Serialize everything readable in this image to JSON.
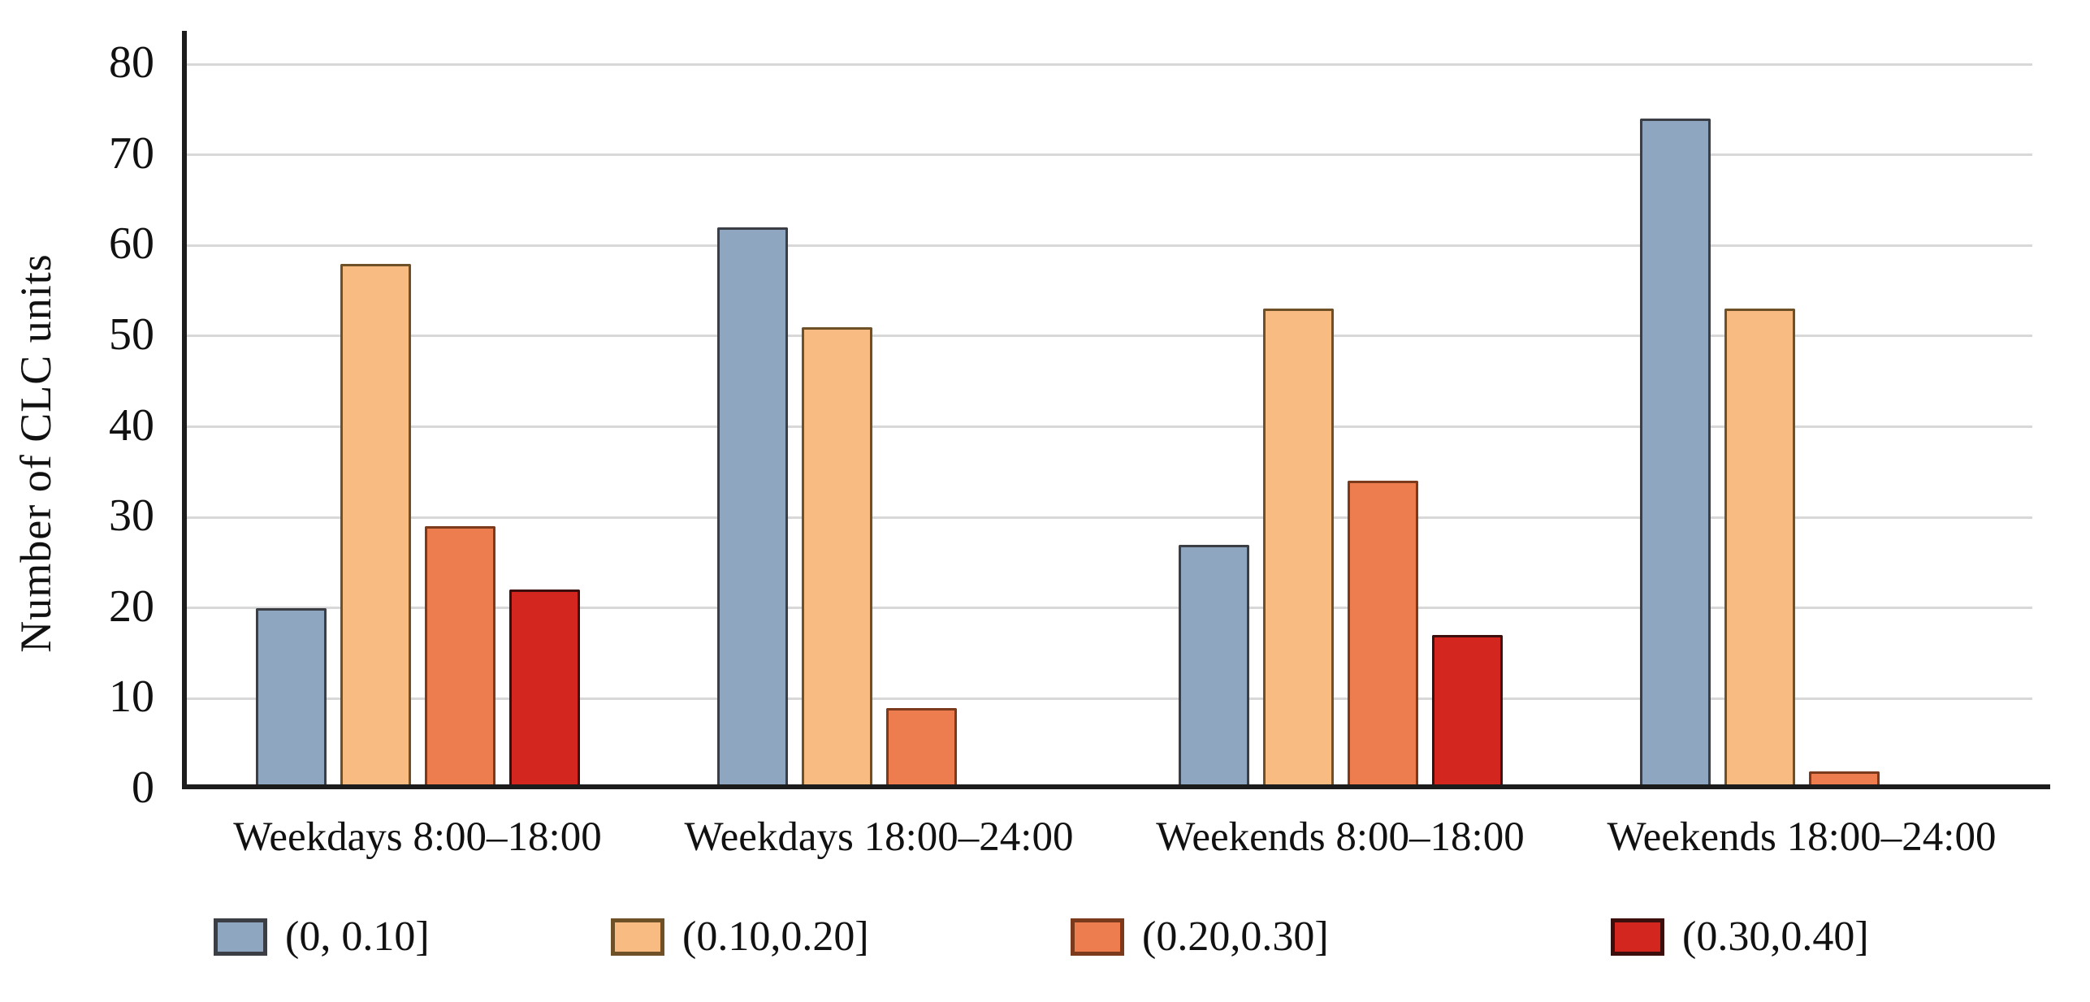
{
  "chart_data": {
    "type": "bar",
    "title": "",
    "xlabel": "",
    "ylabel": "Number of CLC units",
    "ylim": [
      0,
      80
    ],
    "ytick_step": 10,
    "grid": "horizontal",
    "legend_position": "bottom",
    "categories": [
      "Weekdays 8:00–18:00",
      "Weekdays 18:00–24:00",
      "Weekends 8:00–18:00",
      "Weekends 18:00–24:00"
    ],
    "series": [
      {
        "name": "(0, 0.10]",
        "color": "#8EA6BF",
        "border_color": "#3b3f45",
        "values": [
          20,
          62,
          27,
          74
        ]
      },
      {
        "name": "(0.10,0.20]",
        "color": "#F8BC82",
        "border_color": "#6e5126",
        "values": [
          58,
          51,
          53,
          53
        ]
      },
      {
        "name": "(0.20,0.30]",
        "color": "#ED7C4F",
        "border_color": "#7c3a1c",
        "values": [
          29,
          9,
          34,
          2
        ]
      },
      {
        "name": "(0.30,0.40]",
        "color": "#D3261E",
        "border_color": "#3c0f0c",
        "values": [
          22,
          0,
          17,
          0
        ]
      }
    ]
  }
}
